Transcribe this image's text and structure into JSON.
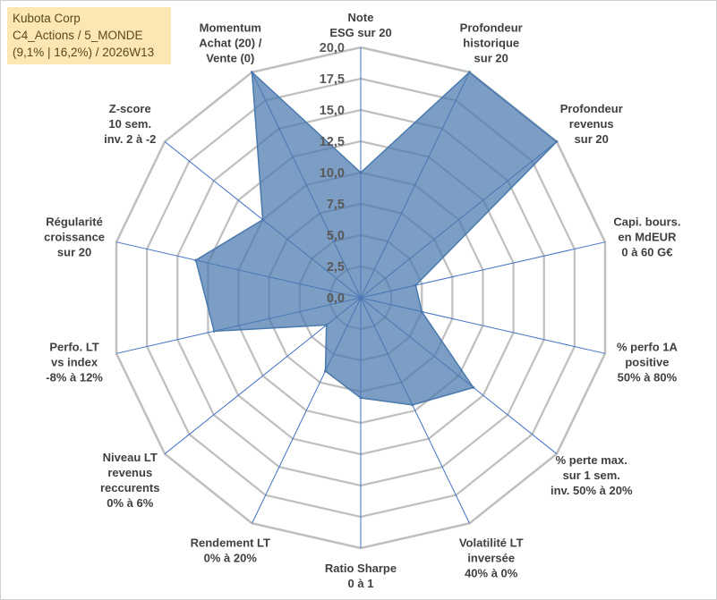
{
  "chart_data": {
    "type": "radar",
    "title": [
      "Kubota Corp",
      "C4_Actions / 5_MONDE",
      "(9,1% | 16,2%) / 2026W13"
    ],
    "axes": [
      [
        "Note",
        "ESG sur 20"
      ],
      [
        "Profondeur",
        "historique",
        "sur 20"
      ],
      [
        "Profondeur",
        "revenus",
        "sur 20"
      ],
      [
        "Capi. bours.",
        "en MdEUR",
        "0 à 60 G€"
      ],
      [
        "% perfo 1A",
        "positive",
        "50% à 80%"
      ],
      [
        "% perte max.",
        "sur 1 sem.",
        "inv. 50% à 20%"
      ],
      [
        "Volatilité LT",
        "inversée",
        "40% à 0%"
      ],
      [
        "Ratio Sharpe",
        "0 à 1"
      ],
      [
        "Rendement LT",
        "0% à 20%"
      ],
      [
        "Niveau LT",
        "revenus",
        "reccurents",
        "0% à 6%"
      ],
      [
        "Perfo. LT",
        "vs index",
        "-8% à 12%"
      ],
      [
        "Régularité",
        "croissance",
        "sur 20"
      ],
      [
        "Z-score",
        "10 sem.",
        "inv. 2 à -2"
      ],
      [
        "Momentum",
        "Achat (20) /",
        "Vente (0)"
      ]
    ],
    "values": [
      10,
      20,
      20,
      4.5,
      5.0,
      11.5,
      9.5,
      8.0,
      6.5,
      3.5,
      12.0,
      13.5,
      10.0,
      20
    ],
    "rlim": [
      0,
      20
    ],
    "ticks": [
      "0,0",
      "2,5",
      "5,0",
      "7,5",
      "10,0",
      "12,5",
      "15,0",
      "17,5",
      "20,0"
    ],
    "colors": {
      "fill": "#4a79ad",
      "stroke": "#4a79ad",
      "grid": "#bfbfbf",
      "spokes": "#4472c4"
    }
  }
}
